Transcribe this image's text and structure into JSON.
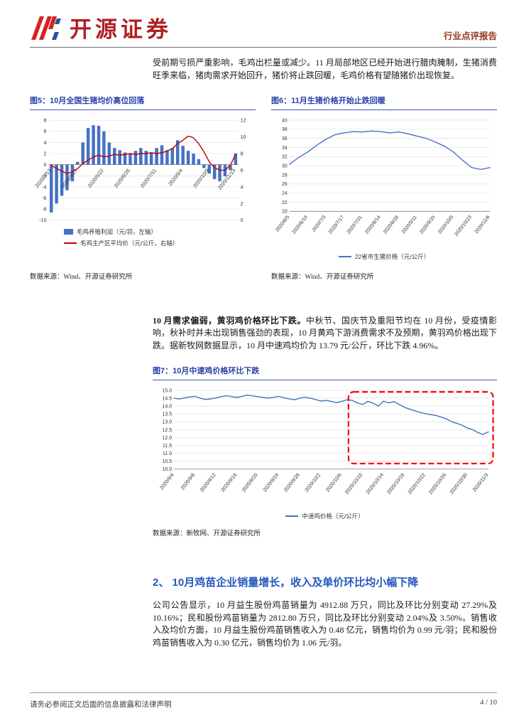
{
  "header": {
    "brand": "开源证券",
    "report_type": "行业点评报告"
  },
  "paragraphs": {
    "p1": "受前期亏损严重影响，毛鸡出栏量或减少。11 月局部地区已经开始进行腊肉腌制，生猪消费旺季来临，猪肉需求开始回升，猪价将止跌回暖，毛鸡价格有望随猪价出现恢复。",
    "p2_bold": "10 月需求偏弱，黄羽鸡价格环比下跌。",
    "p2_rest": "中秋节、国庆节及重阳节均在 10 月份，受疫情影响，秋补时并未出现销售强劲的表现，10 月黄鸡下游消费需求不及预期，黄羽鸡价格出现下跌。据新牧网数据显示，10 月中速鸡均价为 13.79 元/公斤，环比下跌 4.96%。",
    "section2_title": "2、 10月鸡苗企业销量增长，收入及单价环比均小幅下降",
    "p3": "公司公告显示，10 月益生股份鸡苗销量为 4912.88 万只，同比及环比分别变动 27.29%及 10.16%；民和股份鸡苗销量为 2812.80 万只，同比及环比分别变动 2.04%及 3.50%。销售收入及均价方面，10 月益生股份鸡苗销售收入为 0.48 亿元，销售均价为 0.99 元/羽；民和股份鸡苗销售收入为 0.30 亿元，销售均价为 1.06 元/羽。"
  },
  "figures": {
    "fig5": {
      "title": "图5：10月全国生猪均价高位回落",
      "source": "数据来源：Wind、开源证券研究所"
    },
    "fig6": {
      "title": "图6：11月生猪价格开始止跌回暖",
      "source": "数据来源：Wind、开源证券研究所"
    },
    "fig7": {
      "title": "图7：10月中速鸡价格环比下跌",
      "source": "数据来源：新牧网、开源证券研究所"
    }
  },
  "footer": {
    "disclaimer": "请务必参阅正文后面的信息披露和法律声明",
    "page": "4 / 10"
  },
  "colors": {
    "accent_blue": "#2640a6",
    "section_blue": "#2256c0",
    "brand_red": "#b01f24",
    "bar_blue": "#4472C4",
    "line_red": "#C00000",
    "annotation_red": "#FF0000"
  },
  "chart_data": [
    {
      "id": "fig5",
      "type": "bar",
      "title": "10月全国生猪均价高位回落",
      "legend_position": "bottom-left",
      "x_tick_every": 5,
      "categories": [
        "2020/3/13",
        "2020/3/20",
        "2020/3/27",
        "2020/4/3",
        "2020/4/10",
        "2020/4/17",
        "2020/4/24",
        "2020/5/1",
        "2020/5/8",
        "2020/5/15",
        "2020/5/22",
        "2020/5/29",
        "2020/6/5",
        "2020/6/12",
        "2020/6/19",
        "2020/6/26",
        "2020/7/3",
        "2020/7/10",
        "2020/7/17",
        "2020/7/24",
        "2020/7/31",
        "2020/8/7",
        "2020/8/14",
        "2020/8/21",
        "2020/8/28",
        "2020/9/4",
        "2020/9/11",
        "2020/9/18",
        "2020/9/25",
        "2020/10/2",
        "2020/10/9",
        "2020/10/16",
        "2020/10/23",
        "2020/10/30",
        "2020/11/6",
        "2020/11/13"
      ],
      "y_left": {
        "min": -10,
        "max": 8,
        "step": 2
      },
      "y_right": {
        "min": 0,
        "max": 12,
        "step": 2
      },
      "series": [
        {
          "name": "毛鸡养殖利润（元/羽，左轴）",
          "type": "bar",
          "axis": "left",
          "color": "#4472C4",
          "values": [
            -8.6,
            -7.0,
            -5.6,
            -4.6,
            -3.0,
            0.5,
            4.0,
            6.6,
            7.1,
            7.0,
            6.0,
            4.0,
            3.0,
            2.6,
            2.2,
            2.0,
            2.5,
            3.0,
            2.5,
            2.1,
            3.0,
            3.5,
            2.6,
            3.0,
            4.4,
            3.4,
            2.5,
            2.0,
            1.0,
            -0.6,
            -1.6,
            -2.6,
            -3.0,
            -2.1,
            -1.0,
            2.0
          ]
        },
        {
          "name": "毛鸡主产区平均价（元/公斤，右轴）",
          "type": "line",
          "axis": "right",
          "color": "#C00000",
          "values": [
            6.6,
            6.2,
            5.9,
            5.6,
            5.8,
            6.2,
            6.8,
            7.2,
            7.6,
            7.8,
            7.6,
            7.7,
            7.9,
            7.8,
            7.9,
            8.0,
            7.9,
            8.0,
            8.0,
            8.1,
            8.0,
            8.1,
            8.3,
            8.6,
            9.2,
            9.6,
            10.1,
            9.9,
            9.2,
            8.2,
            7.0,
            6.3,
            6.0,
            6.0,
            6.6,
            7.9
          ]
        }
      ]
    },
    {
      "id": "fig6",
      "type": "line",
      "title": "11月生猪价格开始止跌回暖",
      "legend_position": "bottom-center",
      "x_tick_every": 2,
      "categories": [
        "2020/6/5",
        "2020/6/12",
        "2020/6/19",
        "2020/6/26",
        "2020/7/3",
        "2020/7/10",
        "2020/7/17",
        "2020/7/24",
        "2020/7/31",
        "2020/8/7",
        "2020/8/14",
        "2020/8/21",
        "2020/8/28",
        "2020/9/4",
        "2020/9/11",
        "2020/9/18",
        "2020/9/25",
        "2020/10/2",
        "2020/10/9",
        "2020/10/16",
        "2020/10/23",
        "2020/10/30",
        "2020/11/6"
      ],
      "y_left": {
        "min": 20,
        "max": 40,
        "step": 2
      },
      "series": [
        {
          "name": "22省市生猪价格（元/公斤）",
          "type": "line",
          "axis": "left",
          "color": "#4472C4",
          "values": [
            30.3,
            31.8,
            33.0,
            34.5,
            35.8,
            36.8,
            37.2,
            37.5,
            37.4,
            37.6,
            37.5,
            37.2,
            37.4,
            37.0,
            36.5,
            36.0,
            35.2,
            34.3,
            33.0,
            31.2,
            29.6,
            29.2,
            29.6
          ]
        }
      ]
    },
    {
      "id": "fig7",
      "type": "line",
      "title": "10月中速鸡价格环比下跌",
      "legend_position": "bottom-center",
      "x_tick_every": 4,
      "categories": [
        "2020/9/4",
        "2020/9/5",
        "2020/9/6",
        "2020/9/7",
        "2020/9/8",
        "2020/9/9",
        "2020/9/10",
        "2020/9/11",
        "2020/9/12",
        "2020/9/13",
        "2020/9/14",
        "2020/9/15",
        "2020/9/16",
        "2020/9/17",
        "2020/9/18",
        "2020/9/19",
        "2020/9/20",
        "2020/9/21",
        "2020/9/22",
        "2020/9/23",
        "2020/9/24",
        "2020/9/25",
        "2020/9/26",
        "2020/9/27",
        "2020/9/28",
        "2020/9/29",
        "2020/9/30",
        "2020/10/1",
        "2020/10/2",
        "2020/10/3",
        "2020/10/4",
        "2020/10/5",
        "2020/10/6",
        "2020/10/7",
        "2020/10/8",
        "2020/10/9",
        "2020/10/10",
        "2020/10/11",
        "2020/10/12",
        "2020/10/13",
        "2020/10/14",
        "2020/10/15",
        "2020/10/16",
        "2020/10/17",
        "2020/10/18",
        "2020/10/19",
        "2020/10/20",
        "2020/10/21",
        "2020/10/22",
        "2020/10/23",
        "2020/10/24",
        "2020/10/25",
        "2020/10/26",
        "2020/10/27",
        "2020/10/28",
        "2020/10/29",
        "2020/10/30",
        "2020/10/31",
        "2020/11/1",
        "2020/11/2",
        "2020/11/3"
      ],
      "y_left": {
        "min": 10,
        "max": 15,
        "step": 0.5,
        "decimals": 1
      },
      "annotation": {
        "type": "dashed-rect",
        "color": "#FF0000",
        "x0_frac": 0.555,
        "x1_frac": 1.015,
        "y0_frac": 0.02,
        "y1_frac": 0.93
      },
      "series": [
        {
          "name": "中速鸡价格（元/公斤）",
          "type": "line",
          "axis": "left",
          "color": "#4472C4",
          "values": [
            14.5,
            14.45,
            14.52,
            14.58,
            14.62,
            14.5,
            14.42,
            14.46,
            14.52,
            14.6,
            14.66,
            14.6,
            14.55,
            14.62,
            14.7,
            14.65,
            14.6,
            14.55,
            14.5,
            14.56,
            14.62,
            14.52,
            14.46,
            14.4,
            14.5,
            14.56,
            14.5,
            14.42,
            14.32,
            14.36,
            14.3,
            14.22,
            14.3,
            14.4,
            14.36,
            14.2,
            14.1,
            14.3,
            14.18,
            14.0,
            14.32,
            14.2,
            14.28,
            14.1,
            13.92,
            13.8,
            13.7,
            13.6,
            13.52,
            13.46,
            13.4,
            13.3,
            13.18,
            13.0,
            12.9,
            12.78,
            12.6,
            12.5,
            12.32,
            12.2,
            12.36
          ]
        }
      ]
    }
  ]
}
